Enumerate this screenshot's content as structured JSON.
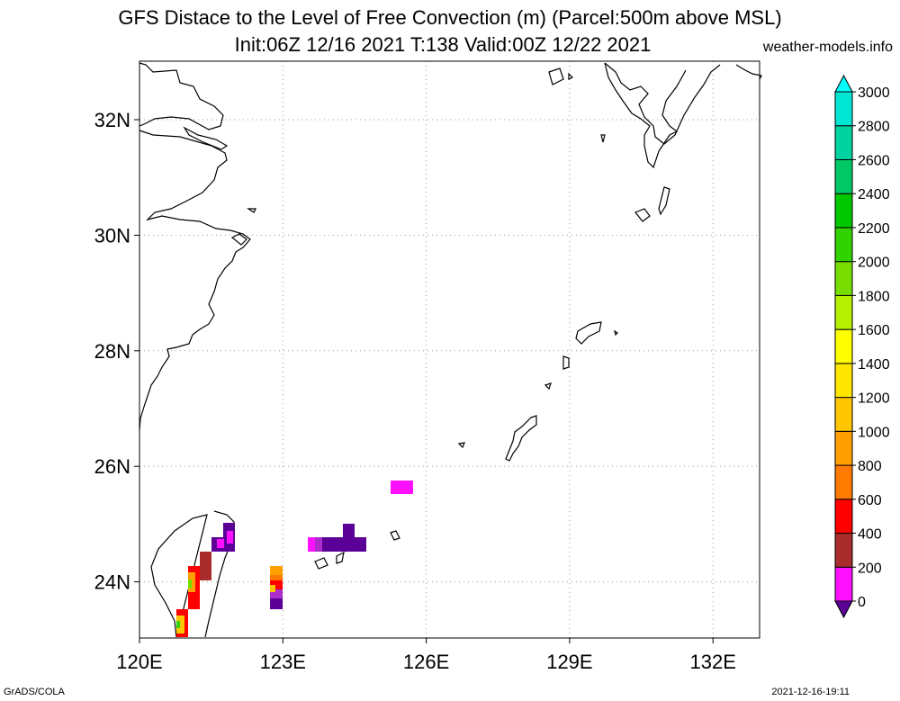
{
  "title_line1": "GFS Distace to the Level of Free Convection (m) (Parcel:500m above MSL)",
  "title_line2": "Init:06Z 12/16 2021 T:138 Valid:00Z 12/22 2021",
  "site": "weather-models.info",
  "footer_left": "GrADS/COLA",
  "footer_right": "2021-12-16-19:11",
  "lat_labels": [
    {
      "lat": 32,
      "label": "32N"
    },
    {
      "lat": 30,
      "label": "30N"
    },
    {
      "lat": 28,
      "label": "28N"
    },
    {
      "lat": 26,
      "label": "26N"
    },
    {
      "lat": 24,
      "label": "24N"
    }
  ],
  "lon_labels": [
    {
      "lon": 120,
      "label": "120E"
    },
    {
      "lon": 123,
      "label": "123E"
    },
    {
      "lon": 126,
      "label": "126E"
    },
    {
      "lon": 129,
      "label": "129E"
    },
    {
      "lon": 132,
      "label": "132E"
    }
  ],
  "legend": {
    "labels": [
      "0",
      "200",
      "400",
      "600",
      "800",
      "1000",
      "1200",
      "1400",
      "1600",
      "1800",
      "2000",
      "2200",
      "2400",
      "2600",
      "2800",
      "3000"
    ],
    "colors": [
      "#5a0096",
      "#ff10ff",
      "#aa2d2d",
      "#ff0000",
      "#ff7a00",
      "#ff9f00",
      "#ffc600",
      "#ffe600",
      "#ffff00",
      "#b4f000",
      "#78dc00",
      "#32d200",
      "#00c800",
      "#00c864",
      "#00d2a0",
      "#00e6d2",
      "#00ffff"
    ]
  }
}
